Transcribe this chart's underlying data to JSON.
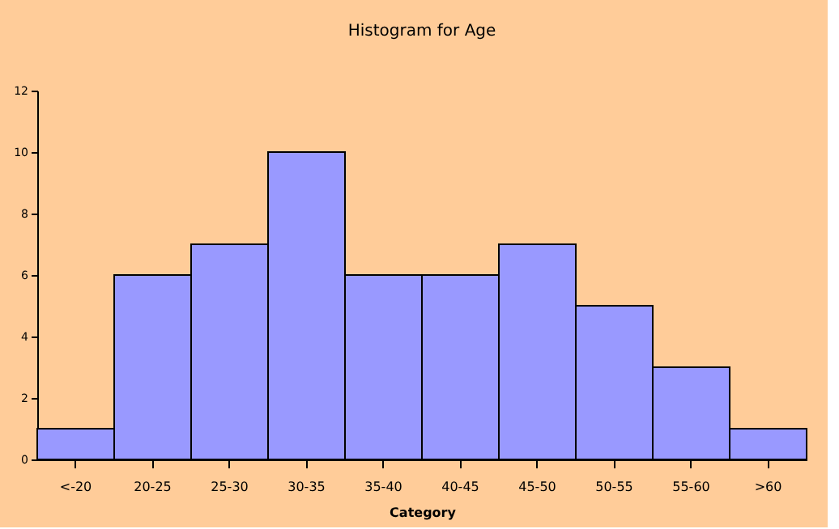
{
  "chart_data": {
    "type": "bar",
    "title": "Histogram for Age",
    "xlabel": "Category",
    "categories": [
      "<-20",
      "20-25",
      "25-30",
      "30-35",
      "35-40",
      "40-45",
      "45-50",
      "50-55",
      "55-60",
      ">60"
    ],
    "values": [
      1,
      6,
      7,
      10,
      6,
      6,
      7,
      5,
      3,
      1
    ],
    "color": "#9999ff",
    "ylim": [
      0,
      12
    ],
    "yticks": [
      0,
      2,
      4,
      6,
      8,
      10,
      12
    ],
    "grid": false
  }
}
